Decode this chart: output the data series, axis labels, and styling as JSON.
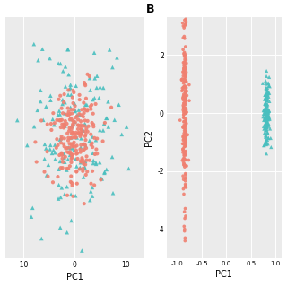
{
  "salmon_color": "#F08070",
  "teal_color": "#49BFBF",
  "bg_color": "#EBEBEB",
  "grid_color": "#FFFFFF",
  "panel_B_label": "B",
  "left_xlabel": "PC1",
  "right_xlabel": "PC1",
  "right_ylabel": "PC2",
  "left_xlim": [
    -13.5,
    13.5
  ],
  "left_ylim": [
    -9,
    9
  ],
  "right_xlim": [
    -1.22,
    1.12
  ],
  "right_ylim": [
    -5.0,
    3.3
  ],
  "left_xticks": [
    -10,
    0,
    10
  ],
  "right_xticks": [
    -1.0,
    -0.5,
    0.0,
    0.5,
    1.0
  ],
  "right_yticks": [
    -4,
    -2,
    0,
    2
  ],
  "n_salmon": 220,
  "n_teal": 160,
  "seed": 99
}
